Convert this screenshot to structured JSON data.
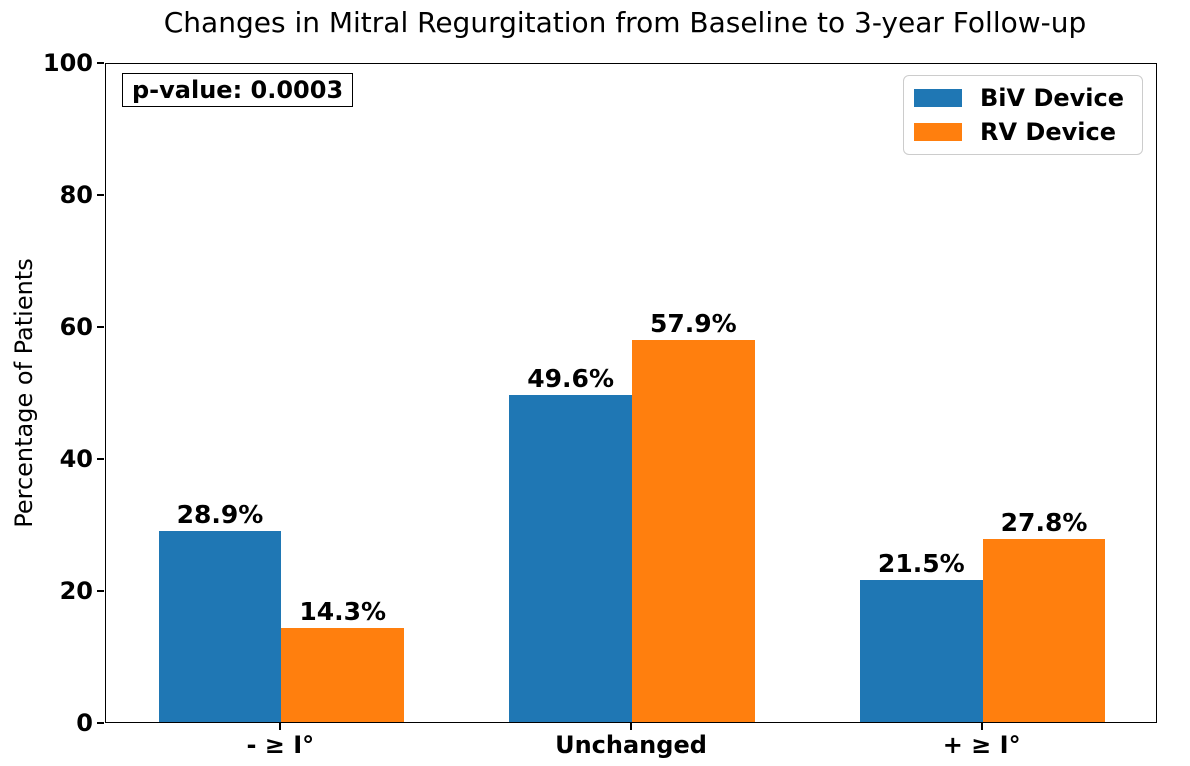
{
  "chart_data": {
    "type": "bar",
    "title": "Changes in Mitral Regurgitation from Baseline to 3-year Follow-up",
    "categories": [
      "- ≥ I°",
      "Unchanged",
      "+ ≥ I°"
    ],
    "series": [
      {
        "name": "BiV Device",
        "color": "#1f77b4",
        "values": [
          28.9,
          49.6,
          21.5
        ]
      },
      {
        "name": "RV Device",
        "color": "#ff7f0e",
        "values": [
          14.3,
          57.9,
          27.8
        ]
      }
    ],
    "xlabel": "",
    "ylabel": "Percentage of Patients",
    "ylim": [
      0,
      100
    ],
    "yticks": [
      0,
      20,
      40,
      60,
      80,
      100
    ],
    "bar_value_suffix": "%",
    "bar_value_labels": {
      "BiV Device": [
        "28.9%",
        "49.6%",
        "21.5%"
      ],
      "RV Device": [
        "14.3%",
        "57.9%",
        "27.8%"
      ]
    },
    "annotation": "p-value: 0.0003",
    "legend_position": "upper right",
    "grid": false
  }
}
